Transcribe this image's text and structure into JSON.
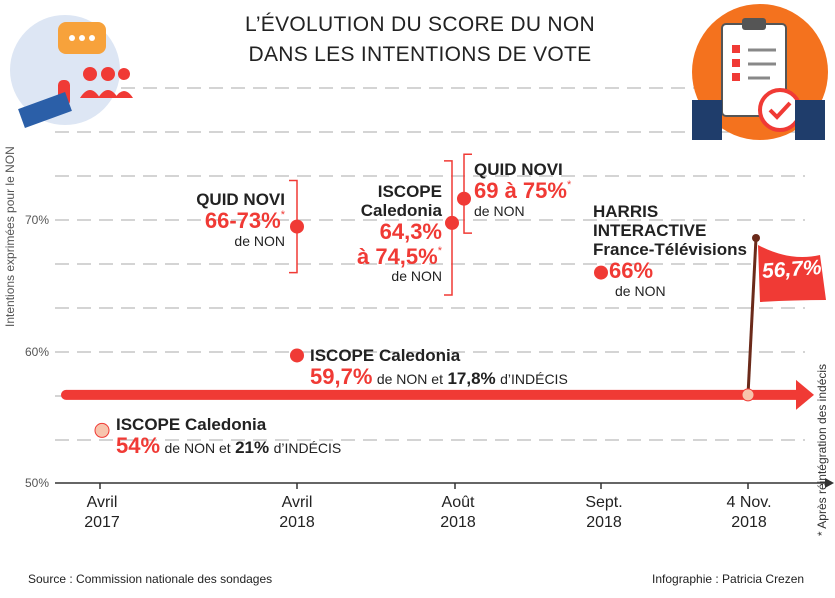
{
  "title_line1": "L’ÉVOLUTION DU SCORE DU NON",
  "title_line2": "DANS LES INTENTIONS DE VOTE",
  "source": "Source : Commission nationale des sondages",
  "credit": "Infographie : Patricia Crezen",
  "colors": {
    "accent": "#f03a35",
    "light": "#f7c4ad",
    "grid": "#bbbbbb"
  },
  "icons": [
    "speech-bubble-interview-icon",
    "clipboard-checklist-icon",
    "flag-icon"
  ],
  "chart_data": {
    "type": "scatter",
    "ylabel": "Intentions exprimées pour le NON",
    "yticks": [
      "70%",
      "60%",
      "50%"
    ],
    "ylim": [
      50,
      75
    ],
    "grid": true,
    "xticks": [
      {
        "l1": "Avril",
        "l2": "2017"
      },
      {
        "l1": "Avril",
        "l2": "2018"
      },
      {
        "l1": "Août",
        "l2": "2018"
      },
      {
        "l1": "Sept.",
        "l2": "2018"
      },
      {
        "l1": "4 Nov.",
        "l2": "2018"
      }
    ],
    "points": [
      {
        "pollster": "ISCOPE Caledonia",
        "value": 54,
        "value_label": "54%",
        "text1": "de NON et",
        "undecided": "21%",
        "text2": "d’INDÉCIS"
      },
      {
        "pollster": "ISCOPE Caledonia",
        "value": 59.7,
        "value_label": "59,7%",
        "text1": "de NON et",
        "undecided": "17,8%",
        "text2": "d’INDÉCIS"
      },
      {
        "pollster": "QUID NOVI",
        "range": [
          66,
          73
        ],
        "value_label": "66-73%",
        "text1": "de NON"
      },
      {
        "pollster_l1": "ISCOPE",
        "pollster_l2": "Caledonia",
        "range": [
          64.3,
          74.5
        ],
        "value_l1": "64,3%",
        "value_l2": "à 74,5%",
        "text1": "de NON"
      },
      {
        "pollster": "QUID NOVI",
        "range": [
          69,
          75
        ],
        "value_label": "69 à 75%",
        "text1": "de NON"
      },
      {
        "pollster_l1": "HARRIS",
        "pollster_l2": "INTERACTIVE",
        "pollster_l3": "France-Télévisions",
        "value": 66,
        "value_label": "66%",
        "text1": "de NON"
      },
      {
        "result": 56.7,
        "value_label": "56,7%"
      }
    ],
    "asterisk": "*",
    "footnote": "* Après réintégration des indécis"
  }
}
